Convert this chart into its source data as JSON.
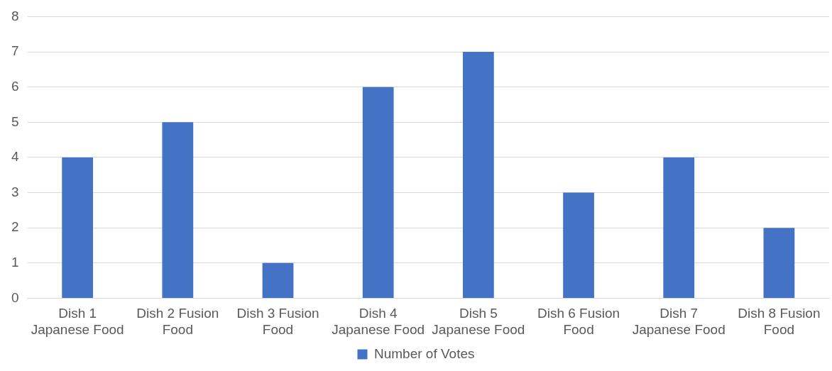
{
  "chart_data": {
    "type": "bar",
    "categories": [
      "Dish 1 Japanese Food",
      "Dish 2 Fusion Food",
      "Dish 3 Fusion Food",
      "Dish 4 Japanese Food",
      "Dish 5 Japanese Food",
      "Dish 6 Fusion Food",
      "Dish 7 Japanese Food",
      "Dish 8 Fusion Food"
    ],
    "series": [
      {
        "name": "Number of Votes",
        "color": "#4472c4",
        "values": [
          4,
          5,
          1,
          6,
          7,
          3,
          4,
          2
        ]
      }
    ],
    "ylim": [
      0,
      8
    ],
    "yticks": [
      0,
      1,
      2,
      3,
      4,
      5,
      6,
      7,
      8
    ],
    "grid": "y",
    "legend": "bottom"
  }
}
